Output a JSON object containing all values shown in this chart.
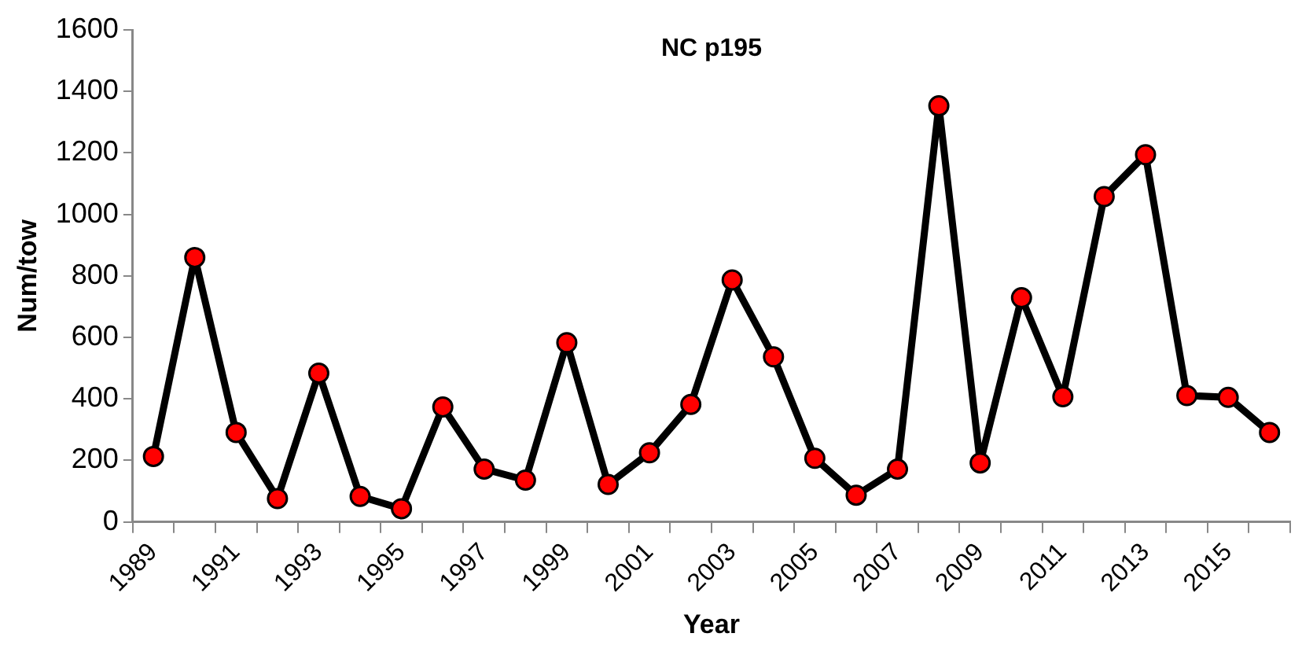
{
  "chart_data": {
    "type": "line",
    "title": "NC p195",
    "xlabel": "Year",
    "ylabel": "Num/tow",
    "categories": [
      "1989",
      null,
      "1991",
      null,
      "1993",
      null,
      "1995",
      null,
      "1997",
      null,
      "1999",
      null,
      "2001",
      null,
      "2003",
      null,
      "2005",
      null,
      "2007",
      null,
      "2009",
      null,
      "2011",
      null,
      "2013",
      null,
      "2015",
      null
    ],
    "series": [
      {
        "color": "#000000",
        "colors": [
          "#ff0000",
          "#ff0000",
          "#ff0000",
          "#ff0000",
          "#ff0000",
          "#ff0000",
          "#ff0000",
          "#ff0000",
          "#ff0000",
          "#ff0000",
          "#ff0000",
          "#ff0000",
          "#ff0000",
          "#ff0000",
          "#ff0000",
          "#ff0000",
          "#ff0000",
          "#ff0000",
          "#ff0000",
          "#ff0000",
          "#ff0000",
          "#ff0000",
          "#ff0000",
          "#ff0000",
          "#ff0000",
          "#ff0000",
          "#ff0000",
          "#ff0000"
        ],
        "values": [
          213,
          860,
          291,
          76,
          484,
          83,
          43,
          374,
          172,
          136,
          583,
          122,
          225,
          382,
          787,
          537,
          207,
          87,
          172,
          1353,
          192,
          729,
          407,
          1058,
          1194,
          411,
          405,
          291
        ]
      }
    ],
    "ylim": [
      0,
      1600
    ],
    "yticks": [
      0,
      200,
      400,
      600,
      800,
      1000,
      1200,
      1400,
      1600
    ],
    "marker": "circle",
    "line_style": "solid",
    "legend": false,
    "grid": false
  }
}
